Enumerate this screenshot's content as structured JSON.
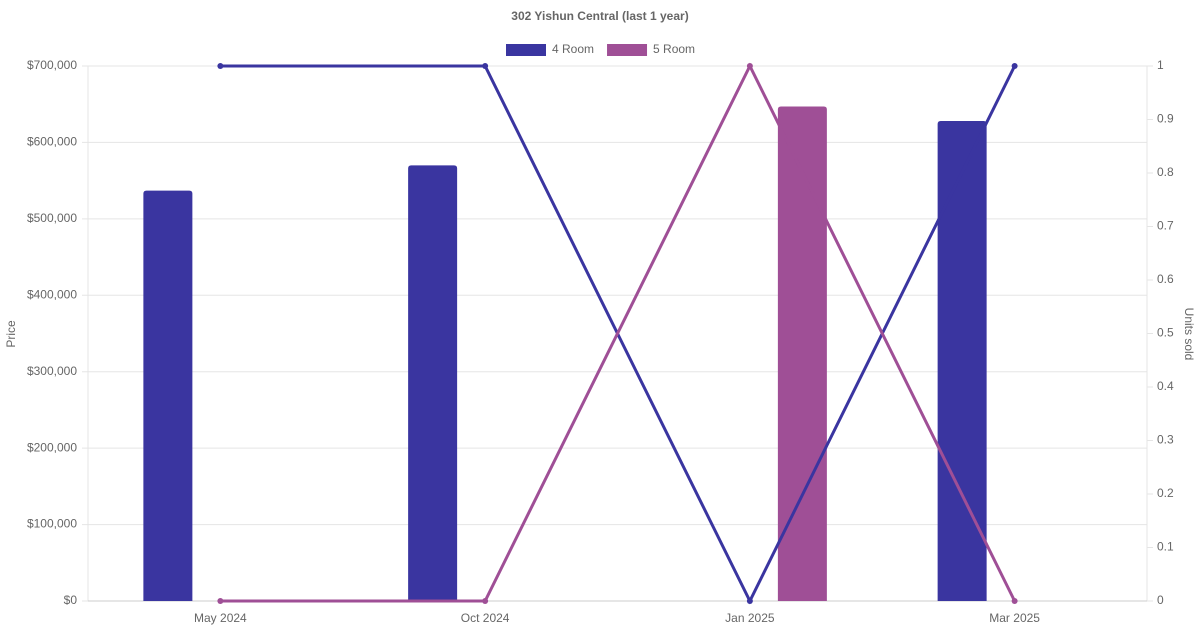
{
  "chart_data": {
    "type": "bar-line",
    "title": "302 Yishun Central (last 1 year)",
    "categories": [
      "May 2024",
      "Oct 2024",
      "Jan 2025",
      "Mar 2025"
    ],
    "y_label": "Price",
    "y2_label": "Units sold",
    "series": [
      {
        "name": "4 Room",
        "color": "#3a35a0",
        "values": [
          537000,
          570000,
          null,
          628000
        ],
        "units_sold": [
          1,
          1,
          0,
          1
        ]
      },
      {
        "name": "5 Room",
        "color": "#9f4f96",
        "values": [
          null,
          null,
          647000,
          null
        ],
        "units_sold": [
          0,
          0,
          1,
          0
        ]
      }
    ],
    "ylim": [
      0,
      700000
    ],
    "yticks": [
      {
        "value": 0,
        "label": "$0"
      },
      {
        "value": 100000,
        "label": "$100,000"
      },
      {
        "value": 200000,
        "label": "$200,000"
      },
      {
        "value": 300000,
        "label": "$300,000"
      },
      {
        "value": 400000,
        "label": "$400,000"
      },
      {
        "value": 500000,
        "label": "$500,000"
      },
      {
        "value": 600000,
        "label": "$600,000"
      },
      {
        "value": 700000,
        "label": "$700,000"
      }
    ],
    "y2lim": [
      0,
      1
    ],
    "y2ticks": [
      0,
      0.1,
      0.2,
      0.3,
      0.4,
      0.5,
      0.6,
      0.7,
      0.8,
      0.9,
      1
    ],
    "grid": true,
    "legend": "top"
  }
}
